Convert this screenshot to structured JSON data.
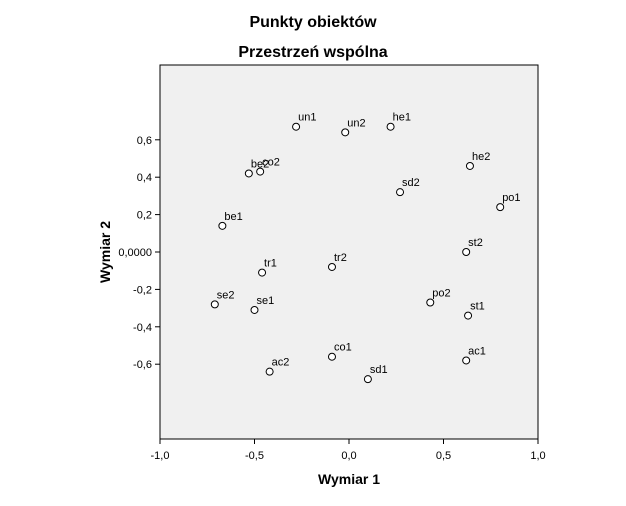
{
  "chart_data": {
    "type": "scatter",
    "title": "Punkty obiektów",
    "subtitle": "Przestrzeń wspólna",
    "xlabel": "Wymiar 1",
    "ylabel": "Wymiar 2",
    "xlim": [
      -1.0,
      1.0
    ],
    "ylim": [
      -1.0,
      1.0
    ],
    "x_ticks": [
      -1.0,
      -0.5,
      0.0,
      0.5,
      1.0
    ],
    "x_tick_labels": [
      "-1,0",
      "-0,5",
      "0,0",
      "0,5",
      "1,0"
    ],
    "y_ticks": [
      -0.6,
      -0.4,
      -0.2,
      0.0,
      0.2,
      0.4,
      0.6
    ],
    "y_tick_labels": [
      "-0,6",
      "-0,4",
      "-0,2",
      "0,0000",
      "0,2",
      "0,4",
      "0,6"
    ],
    "grid": false,
    "legend": false,
    "colors": {
      "plot_background": "#f0f0f0",
      "frame": "#000000",
      "marker_stroke": "#000000",
      "marker_fill": "#ffffff"
    },
    "points": [
      {
        "label": "un1",
        "x": -0.28,
        "y": 0.67
      },
      {
        "label": "un2",
        "x": -0.02,
        "y": 0.64
      },
      {
        "label": "he1",
        "x": 0.22,
        "y": 0.67
      },
      {
        "label": "co2",
        "x": -0.47,
        "y": 0.43
      },
      {
        "label": "be2",
        "x": -0.53,
        "y": 0.42
      },
      {
        "label": "he2",
        "x": 0.64,
        "y": 0.46
      },
      {
        "label": "sd2",
        "x": 0.27,
        "y": 0.32
      },
      {
        "label": "po1",
        "x": 0.8,
        "y": 0.24
      },
      {
        "label": "be1",
        "x": -0.67,
        "y": 0.14
      },
      {
        "label": "st2",
        "x": 0.62,
        "y": 0.0
      },
      {
        "label": "tr2",
        "x": -0.09,
        "y": -0.08
      },
      {
        "label": "tr1",
        "x": -0.46,
        "y": -0.11
      },
      {
        "label": "po2",
        "x": 0.43,
        "y": -0.27
      },
      {
        "label": "se2",
        "x": -0.71,
        "y": -0.28
      },
      {
        "label": "se1",
        "x": -0.5,
        "y": -0.31
      },
      {
        "label": "st1",
        "x": 0.63,
        "y": -0.34
      },
      {
        "label": "co1",
        "x": -0.09,
        "y": -0.56
      },
      {
        "label": "ac1",
        "x": 0.62,
        "y": -0.58
      },
      {
        "label": "ac2",
        "x": -0.42,
        "y": -0.64
      },
      {
        "label": "sd1",
        "x": 0.1,
        "y": -0.68
      }
    ]
  }
}
